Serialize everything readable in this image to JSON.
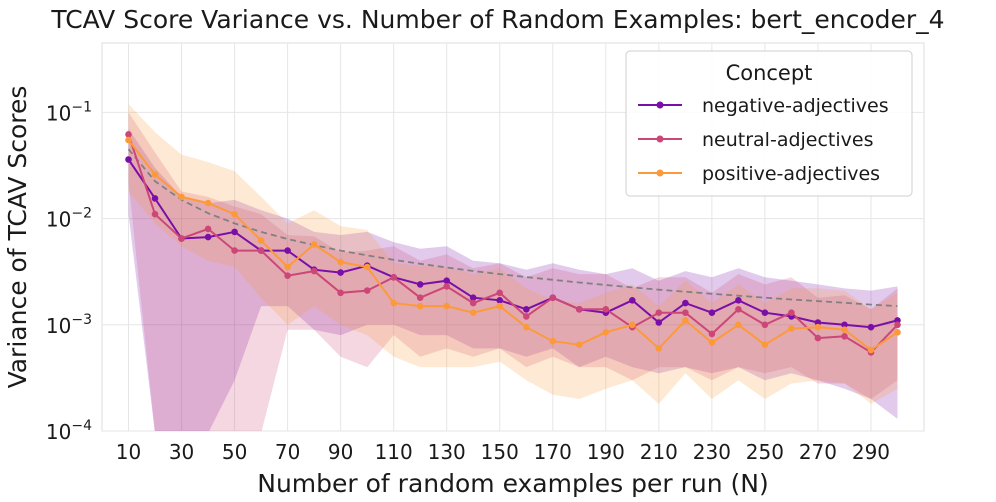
{
  "chart_data": {
    "type": "line",
    "title": "TCAV Score Variance vs. Number of Random Examples: bert_encoder_4",
    "xlabel": "Number of random examples per run (N)",
    "ylabel": "Variance of TCAV Scores",
    "yscale": "log",
    "xlim": [
      0,
      310
    ],
    "ylim": [
      0.0001,
      0.45
    ],
    "x_ticks": [
      10,
      30,
      50,
      70,
      90,
      110,
      130,
      150,
      170,
      190,
      210,
      230,
      250,
      270,
      290
    ],
    "y_ticks": [
      {
        "value": 0.1,
        "base": "10",
        "exp": "−1"
      },
      {
        "value": 0.01,
        "base": "10",
        "exp": "−2"
      },
      {
        "value": 0.001,
        "base": "10",
        "exp": "−3"
      },
      {
        "value": 0.0001,
        "base": "10",
        "exp": "−4"
      }
    ],
    "legend": {
      "title": "Concept",
      "position": "top-right"
    },
    "x": [
      10,
      20,
      30,
      40,
      50,
      60,
      70,
      80,
      90,
      100,
      110,
      120,
      130,
      140,
      150,
      160,
      170,
      180,
      190,
      200,
      210,
      220,
      230,
      240,
      250,
      260,
      270,
      280,
      290,
      300
    ],
    "series": [
      {
        "name": "negative-adjectives",
        "color": "#7a0fa8",
        "values": [
          0.036,
          0.0155,
          0.0065,
          0.0067,
          0.0075,
          0.005,
          0.005,
          0.0033,
          0.0031,
          0.0036,
          0.0028,
          0.0024,
          0.0026,
          0.0018,
          0.0017,
          0.0014,
          0.0018,
          0.0014,
          0.0013,
          0.0017,
          0.00105,
          0.0016,
          0.0013,
          0.0017,
          0.0013,
          0.0012,
          0.00105,
          0.001,
          0.00095,
          0.0011
        ],
        "band_lower": [
          0.011,
          5e-05,
          5e-05,
          5e-05,
          0.0003,
          0.0015,
          0.0015,
          0.0009,
          0.0008,
          0.001,
          0.001,
          0.0008,
          0.0008,
          0.0006,
          0.0006,
          0.0005,
          0.0006,
          0.0004,
          0.0005,
          0.0004,
          0.00035,
          0.0004,
          0.00035,
          0.0004,
          0.0003,
          0.00035,
          0.0003,
          0.00025,
          0.0002,
          0.00013
        ],
        "band_upper": [
          0.07,
          0.03,
          0.016,
          0.014,
          0.015,
          0.012,
          0.01,
          0.0075,
          0.007,
          0.0075,
          0.006,
          0.0052,
          0.0055,
          0.004,
          0.0038,
          0.0033,
          0.0038,
          0.0033,
          0.003,
          0.0034,
          0.0026,
          0.0032,
          0.0028,
          0.0034,
          0.0028,
          0.0026,
          0.0024,
          0.0022,
          0.0021,
          0.0023
        ]
      },
      {
        "name": "neutral-adjectives",
        "color": "#cc4778",
        "values": [
          0.062,
          0.011,
          0.0065,
          0.008,
          0.005,
          0.005,
          0.0029,
          0.0032,
          0.002,
          0.0021,
          0.0028,
          0.0018,
          0.0023,
          0.0016,
          0.002,
          0.0012,
          0.0018,
          0.0014,
          0.0014,
          0.00095,
          0.0013,
          0.0013,
          0.00082,
          0.0014,
          0.001,
          0.0013,
          0.00075,
          0.00078,
          0.00055,
          0.001
        ],
        "band_lower": [
          0.022,
          5e-05,
          5e-05,
          5e-05,
          5e-05,
          5e-05,
          0.0009,
          0.0009,
          0.0005,
          0.0004,
          0.0008,
          0.0005,
          0.0006,
          0.0005,
          0.0006,
          0.0004,
          0.0005,
          0.0004,
          0.0004,
          0.0003,
          0.0004,
          0.0004,
          0.0003,
          0.0004,
          0.00035,
          0.0004,
          0.00028,
          0.00028,
          0.0002,
          0.0003
        ],
        "band_upper": [
          0.1,
          0.042,
          0.018,
          0.016,
          0.013,
          0.011,
          0.007,
          0.0068,
          0.0048,
          0.005,
          0.0055,
          0.004,
          0.0046,
          0.0034,
          0.0038,
          0.0028,
          0.0034,
          0.003,
          0.003,
          0.0022,
          0.0028,
          0.0028,
          0.002,
          0.003,
          0.0024,
          0.0028,
          0.0018,
          0.0019,
          0.0014,
          0.0022
        ]
      },
      {
        "name": "positive-adjectives",
        "color": "#fc9a3b",
        "values": [
          0.055,
          0.026,
          0.016,
          0.014,
          0.011,
          0.0062,
          0.0035,
          0.0057,
          0.0039,
          0.0035,
          0.0016,
          0.0015,
          0.0015,
          0.0013,
          0.0015,
          0.00095,
          0.0007,
          0.00065,
          0.00085,
          0.001,
          0.0006,
          0.0011,
          0.00068,
          0.001,
          0.00065,
          0.00092,
          0.00095,
          0.0009,
          0.00058,
          0.00085
        ],
        "band_lower": [
          0.018,
          0.009,
          0.0055,
          0.004,
          0.0035,
          0.0018,
          0.001,
          0.0015,
          0.001,
          0.0008,
          0.0005,
          0.0004,
          0.0004,
          0.0004,
          0.00045,
          0.0003,
          0.00022,
          0.0002,
          0.00025,
          0.0003,
          0.00018,
          0.00035,
          0.0002,
          0.0003,
          0.0002,
          0.00028,
          0.0003,
          0.00028,
          0.00018,
          0.00025
        ],
        "band_upper": [
          0.12,
          0.065,
          0.04,
          0.034,
          0.028,
          0.016,
          0.009,
          0.012,
          0.0085,
          0.0078,
          0.0038,
          0.0036,
          0.0035,
          0.003,
          0.0034,
          0.0022,
          0.0017,
          0.0016,
          0.002,
          0.0024,
          0.0015,
          0.0026,
          0.0016,
          0.0024,
          0.0016,
          0.0022,
          0.0022,
          0.0021,
          0.0014,
          0.002
        ]
      }
    ],
    "reference_curve": {
      "style": "dashed",
      "color": "#808080",
      "x": [
        10,
        20,
        30,
        40,
        50,
        60,
        70,
        80,
        90,
        100,
        110,
        120,
        130,
        140,
        150,
        160,
        170,
        180,
        190,
        200,
        210,
        220,
        230,
        240,
        250,
        260,
        270,
        280,
        290,
        300
      ],
      "values": [
        0.045,
        0.0225,
        0.015,
        0.01125,
        0.009,
        0.0075,
        0.00643,
        0.00563,
        0.005,
        0.0045,
        0.00409,
        0.00375,
        0.00346,
        0.00321,
        0.003,
        0.00281,
        0.00265,
        0.0025,
        0.00237,
        0.00225,
        0.00214,
        0.00205,
        0.00196,
        0.00188,
        0.0018,
        0.00173,
        0.00167,
        0.00161,
        0.00155,
        0.0015
      ]
    }
  }
}
